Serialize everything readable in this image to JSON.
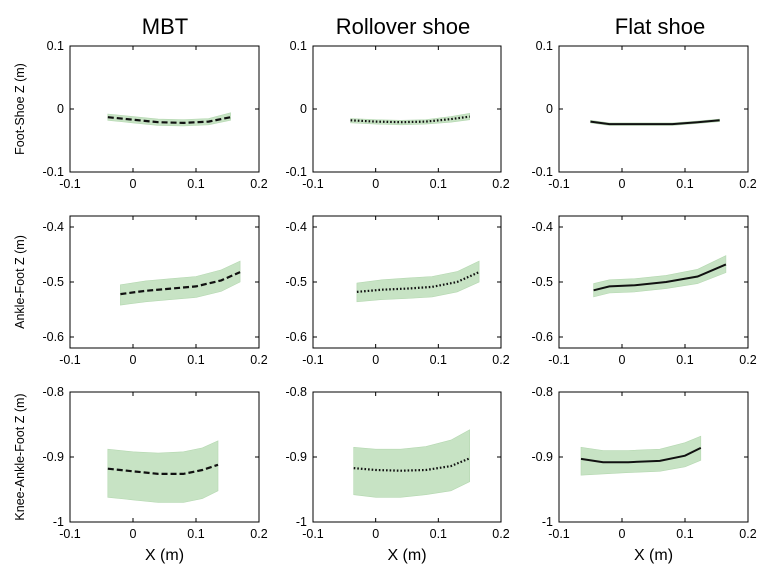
{
  "column_titles": [
    "MBT",
    "Rollover shoe",
    "Flat shoe"
  ],
  "row_labels": [
    "Foot-Shoe Z (m)",
    "Ankle-Foot Z (m)",
    "Knee-Ankle-Foot Z (m)"
  ],
  "xlabel": "X (m)",
  "colors": {
    "band": "#c7e3c4",
    "band_edge": "#b5d8b1",
    "line": "#111111",
    "axis": "#000000"
  },
  "chart_data": [
    {
      "row": 0,
      "type": "line",
      "xlim": [
        -0.1,
        0.2
      ],
      "ylim": [
        -0.1,
        0.1
      ],
      "xticks": [
        -0.1,
        0,
        0.1,
        0.2
      ],
      "yticks": [
        -0.1,
        0,
        0.1
      ],
      "xticklabels": [
        "-0.1",
        "0",
        "0.1",
        "0.2"
      ],
      "yticklabels": [
        "-0.1",
        "0",
        "0.1"
      ],
      "panels": [
        {
          "column": "MBT",
          "style": "dashed",
          "x": [
            -0.04,
            0.0,
            0.04,
            0.08,
            0.12,
            0.155
          ],
          "y": [
            -0.013,
            -0.017,
            -0.021,
            -0.022,
            -0.02,
            -0.013
          ],
          "band_lo": [
            -0.018,
            -0.022,
            -0.026,
            -0.027,
            -0.025,
            -0.018
          ],
          "band_hi": [
            -0.008,
            -0.012,
            -0.016,
            -0.017,
            -0.015,
            -0.006
          ]
        },
        {
          "column": "Rollover shoe",
          "style": "dotted",
          "x": [
            -0.04,
            0.0,
            0.04,
            0.08,
            0.12,
            0.15
          ],
          "y": [
            -0.018,
            -0.02,
            -0.021,
            -0.02,
            -0.016,
            -0.012
          ],
          "band_lo": [
            -0.022,
            -0.024,
            -0.025,
            -0.024,
            -0.021,
            -0.017
          ],
          "band_hi": [
            -0.015,
            -0.017,
            -0.018,
            -0.017,
            -0.012,
            -0.007
          ]
        },
        {
          "column": "Flat shoe",
          "style": "solid",
          "x": [
            -0.05,
            -0.02,
            0.03,
            0.08,
            0.12,
            0.155
          ],
          "y": [
            -0.02,
            -0.024,
            -0.024,
            -0.024,
            -0.021,
            -0.018
          ],
          "band_lo": [
            -0.022,
            -0.026,
            -0.026,
            -0.026,
            -0.023,
            -0.02
          ],
          "band_hi": [
            -0.018,
            -0.022,
            -0.022,
            -0.022,
            -0.019,
            -0.016
          ]
        }
      ]
    },
    {
      "row": 1,
      "type": "line",
      "xlim": [
        -0.1,
        0.2
      ],
      "ylim": [
        -0.62,
        -0.38
      ],
      "xticks": [
        -0.1,
        0,
        0.1,
        0.2
      ],
      "yticks": [
        -0.6,
        -0.5,
        -0.4
      ],
      "xticklabels": [
        "-0.1",
        "0",
        "0.1",
        "0.2"
      ],
      "yticklabels": [
        "-0.6",
        "-0.5",
        "-0.4"
      ],
      "panels": [
        {
          "column": "MBT",
          "style": "dashed",
          "x": [
            -0.02,
            0.02,
            0.06,
            0.1,
            0.14,
            0.17
          ],
          "y": [
            -0.522,
            -0.516,
            -0.512,
            -0.508,
            -0.497,
            -0.482
          ],
          "band_lo": [
            -0.542,
            -0.536,
            -0.532,
            -0.528,
            -0.517,
            -0.5
          ],
          "band_hi": [
            -0.505,
            -0.498,
            -0.494,
            -0.49,
            -0.478,
            -0.462
          ]
        },
        {
          "column": "Rollover shoe",
          "style": "dotted",
          "x": [
            -0.03,
            0.01,
            0.05,
            0.09,
            0.13,
            0.165
          ],
          "y": [
            -0.518,
            -0.514,
            -0.512,
            -0.509,
            -0.5,
            -0.482
          ],
          "band_lo": [
            -0.536,
            -0.532,
            -0.53,
            -0.527,
            -0.518,
            -0.5
          ],
          "band_hi": [
            -0.502,
            -0.496,
            -0.493,
            -0.49,
            -0.481,
            -0.462
          ]
        },
        {
          "column": "Flat shoe",
          "style": "solid",
          "x": [
            -0.045,
            -0.02,
            0.02,
            0.07,
            0.12,
            0.165
          ],
          "y": [
            -0.515,
            -0.508,
            -0.506,
            -0.5,
            -0.49,
            -0.468
          ],
          "band_lo": [
            -0.527,
            -0.52,
            -0.518,
            -0.512,
            -0.503,
            -0.483
          ],
          "band_hi": [
            -0.503,
            -0.496,
            -0.494,
            -0.488,
            -0.477,
            -0.452
          ]
        }
      ]
    },
    {
      "row": 2,
      "type": "line",
      "xlim": [
        -0.1,
        0.2
      ],
      "ylim": [
        -1.0,
        -0.8
      ],
      "xticks": [
        -0.1,
        0,
        0.1,
        0.2
      ],
      "yticks": [
        -1.0,
        -0.9,
        -0.8
      ],
      "xticklabels": [
        "-0.1",
        "0",
        "0.1",
        "0.2"
      ],
      "yticklabels": [
        "-1",
        "-0.9",
        "-0.8"
      ],
      "panels": [
        {
          "column": "MBT",
          "style": "dashed",
          "x": [
            -0.04,
            0.0,
            0.04,
            0.08,
            0.11,
            0.135
          ],
          "y": [
            -0.918,
            -0.922,
            -0.926,
            -0.926,
            -0.92,
            -0.912
          ],
          "band_lo": [
            -0.962,
            -0.966,
            -0.97,
            -0.97,
            -0.964,
            -0.952
          ],
          "band_hi": [
            -0.888,
            -0.892,
            -0.894,
            -0.892,
            -0.886,
            -0.875
          ]
        },
        {
          "column": "Rollover shoe",
          "style": "dotted",
          "x": [
            -0.035,
            0.0,
            0.04,
            0.08,
            0.12,
            0.15
          ],
          "y": [
            -0.917,
            -0.92,
            -0.921,
            -0.92,
            -0.914,
            -0.902
          ],
          "band_lo": [
            -0.958,
            -0.962,
            -0.962,
            -0.958,
            -0.952,
            -0.938
          ],
          "band_hi": [
            -0.885,
            -0.888,
            -0.888,
            -0.884,
            -0.874,
            -0.858
          ]
        },
        {
          "column": "Flat shoe",
          "style": "solid",
          "x": [
            -0.065,
            -0.03,
            0.01,
            0.06,
            0.1,
            0.125
          ],
          "y": [
            -0.903,
            -0.908,
            -0.908,
            -0.906,
            -0.898,
            -0.886
          ],
          "band_lo": [
            -0.928,
            -0.926,
            -0.924,
            -0.922,
            -0.915,
            -0.905
          ],
          "band_hi": [
            -0.885,
            -0.89,
            -0.89,
            -0.888,
            -0.878,
            -0.868
          ]
        }
      ]
    }
  ]
}
